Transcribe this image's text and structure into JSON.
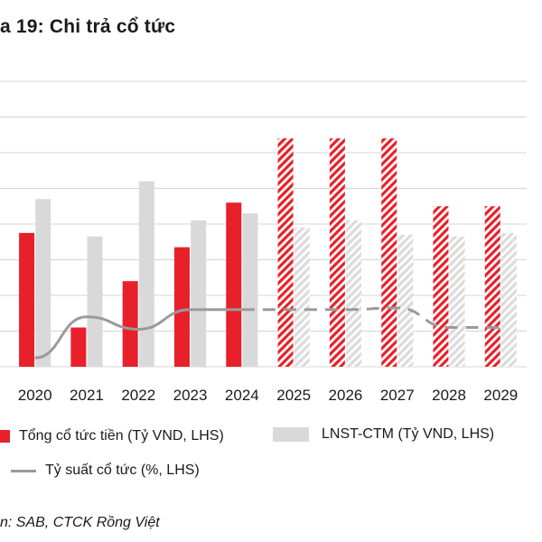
{
  "title": "a 19: Chi trả cổ tức",
  "source": "n: SAB, CTCK Rồng Việt",
  "legend": {
    "cash_dividend": "Tổng cổ tức tiền (Tỷ VND, LHS)",
    "npat": "LNST-CTM (Tỷ VND, LHS)",
    "yield": "Tỷ suất cổ tức (%, LHS)"
  },
  "colors": {
    "cash_dividend": "#e8202a",
    "npat": "#d9d9d9",
    "yield": "#9a9a9a",
    "grid": "#d4d4d4"
  },
  "chart_data": {
    "type": "bar",
    "categories": [
      "2020",
      "2021",
      "2022",
      "2023",
      "2024",
      "2025",
      "2026",
      "2027",
      "2028",
      "2029"
    ],
    "forecast_from_index": 5,
    "ylim": [
      0,
      8
    ],
    "gridlines": 8,
    "series": [
      {
        "name": "Tổng cổ tức tiền (Tỷ VND, LHS)",
        "kind": "bar",
        "values": [
          3.75,
          1.1,
          2.4,
          3.35,
          4.6,
          6.4,
          6.4,
          6.4,
          4.5,
          4.5
        ]
      },
      {
        "name": "LNST-CTM (Tỷ VND, LHS)",
        "kind": "bar",
        "values": [
          4.7,
          3.65,
          5.2,
          4.1,
          4.3,
          3.9,
          4.1,
          3.7,
          3.65,
          3.75
        ]
      },
      {
        "name": "Tỷ suất cổ tức (%, LHS)",
        "kind": "line",
        "values": [
          0.25,
          1.4,
          1.05,
          1.6,
          1.6,
          1.6,
          1.6,
          1.65,
          1.1,
          1.1
        ]
      }
    ]
  }
}
